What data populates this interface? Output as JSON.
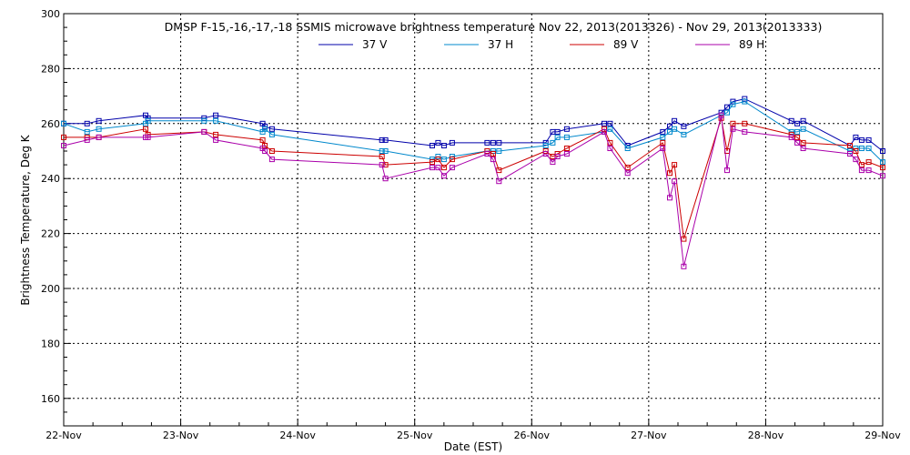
{
  "chart_data": {
    "type": "line",
    "title": "DMSP F-15,-16,-17,-18 SSMIS microwave brightness temperature Nov 22, 2013(2013326) - Nov 29, 2013(2013333)",
    "xlabel": "Date (EST)",
    "ylabel": "Brightness Temperature, Deg K",
    "xlim": [
      0,
      7
    ],
    "ylim": [
      150,
      300
    ],
    "x_ticks": [
      {
        "value": 0,
        "label": "22-Nov"
      },
      {
        "value": 1,
        "label": "23-Nov"
      },
      {
        "value": 2,
        "label": "24-Nov"
      },
      {
        "value": 3,
        "label": "25-Nov"
      },
      {
        "value": 4,
        "label": "26-Nov"
      },
      {
        "value": 5,
        "label": "27-Nov"
      },
      {
        "value": 6,
        "label": "28-Nov"
      },
      {
        "value": 7,
        "label": "29-Nov"
      }
    ],
    "y_ticks": [
      160,
      180,
      200,
      220,
      240,
      260,
      280,
      300
    ],
    "grid": true,
    "legend_position": "top-center",
    "series": [
      {
        "name": "37 V",
        "color": "#0000aa",
        "points": [
          [
            0.0,
            260
          ],
          [
            0.2,
            260
          ],
          [
            0.3,
            261
          ],
          [
            0.7,
            263
          ],
          [
            0.72,
            262
          ],
          [
            1.2,
            262
          ],
          [
            1.3,
            263
          ],
          [
            1.7,
            260
          ],
          [
            1.72,
            259
          ],
          [
            1.78,
            258
          ],
          [
            2.72,
            254
          ],
          [
            2.75,
            254
          ],
          [
            3.15,
            252
          ],
          [
            3.2,
            253
          ],
          [
            3.25,
            252
          ],
          [
            3.32,
            253
          ],
          [
            3.62,
            253
          ],
          [
            3.67,
            253
          ],
          [
            3.72,
            253
          ],
          [
            4.12,
            253
          ],
          [
            4.18,
            257
          ],
          [
            4.22,
            257
          ],
          [
            4.3,
            258
          ],
          [
            4.62,
            260
          ],
          [
            4.67,
            260
          ],
          [
            4.82,
            252
          ],
          [
            5.12,
            257
          ],
          [
            5.18,
            259
          ],
          [
            5.22,
            261
          ],
          [
            5.3,
            259
          ],
          [
            5.62,
            264
          ],
          [
            5.67,
            266
          ],
          [
            5.72,
            268
          ],
          [
            5.82,
            269
          ],
          [
            6.22,
            261
          ],
          [
            6.27,
            260
          ],
          [
            6.32,
            261
          ],
          [
            6.72,
            252
          ],
          [
            6.77,
            255
          ],
          [
            6.82,
            254
          ],
          [
            6.88,
            254
          ],
          [
            7.0,
            250
          ]
        ]
      },
      {
        "name": "37 H",
        "color": "#0088cc",
        "points": [
          [
            0.0,
            260
          ],
          [
            0.2,
            257
          ],
          [
            0.3,
            258
          ],
          [
            0.7,
            260
          ],
          [
            0.72,
            261
          ],
          [
            1.2,
            261
          ],
          [
            1.3,
            261
          ],
          [
            1.7,
            257
          ],
          [
            1.72,
            258
          ],
          [
            1.78,
            256
          ],
          [
            2.72,
            250
          ],
          [
            2.75,
            250
          ],
          [
            3.15,
            247
          ],
          [
            3.2,
            248
          ],
          [
            3.25,
            247
          ],
          [
            3.32,
            248
          ],
          [
            3.62,
            250
          ],
          [
            3.67,
            250
          ],
          [
            3.72,
            250
          ],
          [
            4.12,
            252
          ],
          [
            4.18,
            253
          ],
          [
            4.22,
            255
          ],
          [
            4.3,
            255
          ],
          [
            4.62,
            257
          ],
          [
            4.67,
            258
          ],
          [
            4.82,
            251
          ],
          [
            5.12,
            255
          ],
          [
            5.18,
            257
          ],
          [
            5.22,
            258
          ],
          [
            5.3,
            256
          ],
          [
            5.62,
            263
          ],
          [
            5.67,
            264
          ],
          [
            5.72,
            267
          ],
          [
            5.82,
            268
          ],
          [
            6.22,
            257
          ],
          [
            6.27,
            257
          ],
          [
            6.32,
            258
          ],
          [
            6.72,
            250
          ],
          [
            6.77,
            251
          ],
          [
            6.82,
            251
          ],
          [
            6.88,
            251
          ],
          [
            7.0,
            246
          ]
        ]
      },
      {
        "name": "89 V",
        "color": "#cc0000",
        "points": [
          [
            0.0,
            255
          ],
          [
            0.2,
            255
          ],
          [
            0.3,
            255
          ],
          [
            0.7,
            258
          ],
          [
            0.72,
            256
          ],
          [
            1.2,
            257
          ],
          [
            1.3,
            256
          ],
          [
            1.7,
            254
          ],
          [
            1.72,
            252
          ],
          [
            1.78,
            250
          ],
          [
            2.72,
            248
          ],
          [
            2.75,
            245
          ],
          [
            3.15,
            246
          ],
          [
            3.2,
            247
          ],
          [
            3.25,
            244
          ],
          [
            3.32,
            247
          ],
          [
            3.62,
            250
          ],
          [
            3.67,
            249
          ],
          [
            3.72,
            243
          ],
          [
            4.12,
            250
          ],
          [
            4.18,
            248
          ],
          [
            4.22,
            249
          ],
          [
            4.3,
            251
          ],
          [
            4.62,
            258
          ],
          [
            4.67,
            253
          ],
          [
            4.82,
            244
          ],
          [
            5.12,
            253
          ],
          [
            5.18,
            242
          ],
          [
            5.22,
            245
          ],
          [
            5.3,
            218
          ],
          [
            5.62,
            262
          ],
          [
            5.67,
            250
          ],
          [
            5.72,
            260
          ],
          [
            5.82,
            260
          ],
          [
            6.22,
            256
          ],
          [
            6.27,
            255
          ],
          [
            6.32,
            253
          ],
          [
            6.72,
            252
          ],
          [
            6.77,
            250
          ],
          [
            6.82,
            245
          ],
          [
            6.88,
            246
          ],
          [
            7.0,
            244
          ]
        ]
      },
      {
        "name": "89 H",
        "color": "#aa00aa",
        "points": [
          [
            0.0,
            252
          ],
          [
            0.2,
            254
          ],
          [
            0.3,
            255
          ],
          [
            0.7,
            255
          ],
          [
            0.72,
            255
          ],
          [
            1.2,
            257
          ],
          [
            1.3,
            254
          ],
          [
            1.7,
            251
          ],
          [
            1.72,
            250
          ],
          [
            1.78,
            247
          ],
          [
            2.72,
            245
          ],
          [
            2.75,
            240
          ],
          [
            3.15,
            244
          ],
          [
            3.2,
            244
          ],
          [
            3.25,
            241
          ],
          [
            3.32,
            244
          ],
          [
            3.62,
            249
          ],
          [
            3.67,
            247
          ],
          [
            3.72,
            239
          ],
          [
            4.12,
            249
          ],
          [
            4.18,
            246
          ],
          [
            4.22,
            248
          ],
          [
            4.3,
            249
          ],
          [
            4.62,
            257
          ],
          [
            4.67,
            251
          ],
          [
            4.82,
            242
          ],
          [
            5.12,
            251
          ],
          [
            5.18,
            233
          ],
          [
            5.22,
            239
          ],
          [
            5.3,
            208
          ],
          [
            5.62,
            263
          ],
          [
            5.67,
            243
          ],
          [
            5.72,
            258
          ],
          [
            5.82,
            257
          ],
          [
            6.22,
            255
          ],
          [
            6.27,
            253
          ],
          [
            6.32,
            251
          ],
          [
            6.72,
            249
          ],
          [
            6.77,
            247
          ],
          [
            6.82,
            243
          ],
          [
            6.88,
            243
          ],
          [
            7.0,
            241
          ]
        ]
      }
    ]
  }
}
